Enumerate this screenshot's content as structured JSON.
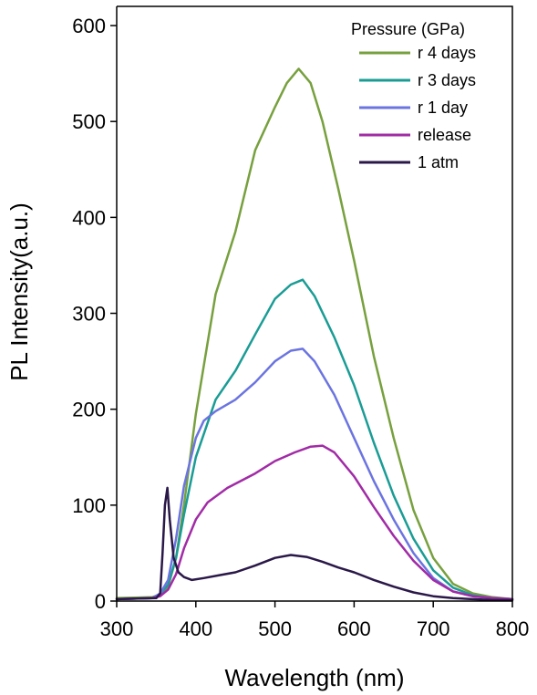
{
  "chart_data": {
    "type": "line",
    "title": "",
    "xlabel": "Wavelength (nm)",
    "ylabel": "PL Intensity(a.u.)",
    "xlim": [
      300,
      800
    ],
    "ylim": [
      0,
      620
    ],
    "xticks": [
      "300",
      "400",
      "500",
      "600",
      "700",
      "800"
    ],
    "yticks": [
      "0",
      "100",
      "200",
      "300",
      "400",
      "500",
      "600"
    ],
    "grid": false,
    "legend": {
      "title": "Pressure (GPa)",
      "position": "top-right"
    },
    "series": [
      {
        "name": "r 4 days",
        "color": "#77a03e",
        "x": [
          300,
          345,
          355,
          365,
          375,
          385,
          400,
          425,
          450,
          475,
          500,
          515,
          530,
          545,
          560,
          580,
          600,
          625,
          650,
          675,
          700,
          725,
          750,
          775,
          800
        ],
        "y": [
          3,
          4,
          7,
          15,
          45,
          100,
          195,
          320,
          385,
          470,
          515,
          540,
          555,
          540,
          500,
          430,
          355,
          255,
          170,
          95,
          45,
          18,
          8,
          4,
          2
        ]
      },
      {
        "name": "r 3 days",
        "color": "#1a9c95",
        "x": [
          300,
          345,
          355,
          365,
          375,
          385,
          400,
          425,
          450,
          475,
          500,
          520,
          535,
          550,
          575,
          600,
          625,
          650,
          675,
          700,
          725,
          750,
          775,
          800
        ],
        "y": [
          2,
          3,
          7,
          17,
          45,
          90,
          150,
          210,
          240,
          278,
          315,
          330,
          335,
          318,
          275,
          225,
          165,
          110,
          65,
          32,
          14,
          6,
          3,
          2
        ]
      },
      {
        "name": "r 1 day",
        "color": "#6b74e0",
        "x": [
          300,
          345,
          355,
          365,
          375,
          385,
          400,
          410,
          425,
          450,
          475,
          500,
          520,
          535,
          550,
          575,
          600,
          625,
          650,
          675,
          700,
          725,
          750,
          775,
          800
        ],
        "y": [
          2,
          3,
          8,
          22,
          65,
          120,
          170,
          188,
          198,
          210,
          228,
          250,
          261,
          263,
          250,
          215,
          170,
          125,
          85,
          50,
          24,
          10,
          5,
          3,
          2
        ]
      },
      {
        "name": "release",
        "color": "#a12ba6",
        "x": [
          300,
          345,
          355,
          365,
          375,
          385,
          400,
          415,
          440,
          475,
          500,
          525,
          545,
          560,
          575,
          600,
          625,
          650,
          675,
          700,
          725,
          750,
          775,
          800
        ],
        "y": [
          2,
          3,
          5,
          12,
          28,
          55,
          85,
          103,
          118,
          133,
          146,
          155,
          161,
          162,
          155,
          130,
          98,
          68,
          42,
          22,
          10,
          5,
          3,
          2
        ]
      },
      {
        "name": "1 atm",
        "color": "#2a1848",
        "x": [
          300,
          350,
          355,
          358,
          361,
          364,
          367,
          372,
          378,
          385,
          395,
          410,
          430,
          450,
          475,
          500,
          520,
          540,
          560,
          580,
          600,
          625,
          650,
          675,
          700,
          725,
          750,
          775,
          800
        ],
        "y": [
          2,
          3,
          8,
          50,
          100,
          118,
          85,
          45,
          30,
          25,
          22,
          24,
          27,
          30,
          37,
          45,
          48,
          46,
          41,
          35,
          30,
          22,
          15,
          9,
          5,
          3,
          2,
          1,
          1
        ]
      }
    ]
  }
}
